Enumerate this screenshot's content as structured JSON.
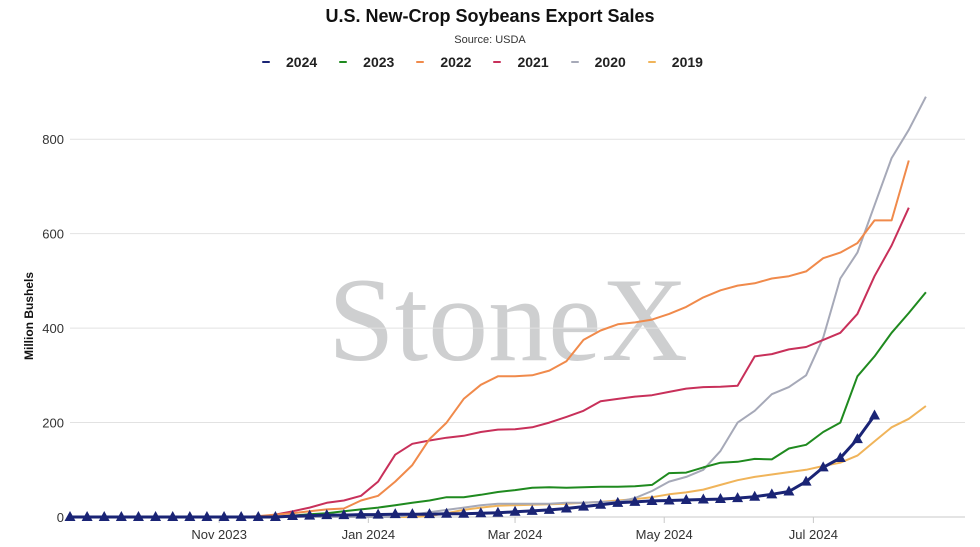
{
  "chart_data": {
    "type": "line",
    "title": "U.S. New-Crop Soybeans Export Sales",
    "subtitle": "Source: USDA",
    "ylabel": "Million Bushels",
    "xlabel": "",
    "ylim": [
      0,
      900
    ],
    "yticks": [
      0,
      200,
      400,
      600,
      800
    ],
    "xtick_labels": [
      "Nov 2023",
      "Jan 2024",
      "Mar 2024",
      "May 2024",
      "Jul 2024"
    ],
    "xtick_dates": [
      "2023-11-01",
      "2024-01-01",
      "2024-03-01",
      "2024-05-01",
      "2024-07-01"
    ],
    "xrange": [
      "2023-09-01",
      "2024-09-01"
    ],
    "x_start_date": "2023-09-01",
    "x_step_days": 7,
    "grid": "horizontal",
    "legend_position": "top",
    "watermark": "StoneX",
    "series": [
      {
        "name": "2024",
        "color": "#1a2475",
        "marker": "triangle",
        "values": [
          0,
          0,
          0,
          0,
          0,
          0,
          0,
          0,
          0,
          0,
          0,
          0,
          0,
          2,
          3,
          4,
          4,
          5,
          5,
          6,
          6,
          6,
          7,
          7,
          8,
          9,
          11,
          13,
          15,
          18,
          22,
          26,
          30,
          32,
          34,
          35,
          36,
          37,
          38,
          40,
          43,
          48,
          54,
          75,
          105,
          125,
          165,
          215
        ]
      },
      {
        "name": "2023",
        "color": "#1f8a1f",
        "values": [
          0,
          0,
          0,
          0,
          0,
          0,
          0,
          0,
          0,
          0,
          0,
          0,
          0,
          3,
          6,
          8,
          12,
          16,
          20,
          25,
          30,
          35,
          42,
          42,
          47,
          53,
          57,
          62,
          63,
          62,
          63,
          64,
          64,
          65,
          68,
          93,
          94,
          105,
          115,
          117,
          123,
          122,
          145,
          153,
          180,
          200,
          298,
          340,
          390,
          432,
          476
        ]
      },
      {
        "name": "2022",
        "color": "#f08a4b",
        "values": [
          0,
          0,
          0,
          0,
          0,
          0,
          0,
          0,
          0,
          0,
          0,
          2,
          5,
          8,
          12,
          16,
          18,
          35,
          45,
          75,
          110,
          165,
          200,
          250,
          280,
          298,
          298,
          300,
          310,
          330,
          375,
          395,
          408,
          412,
          418,
          430,
          445,
          465,
          480,
          490,
          495,
          505,
          510,
          520,
          548,
          560,
          580,
          628,
          628,
          755
        ]
      },
      {
        "name": "2021",
        "color": "#c8305a",
        "values": [
          0,
          0,
          0,
          0,
          0,
          0,
          0,
          0,
          0,
          0,
          0,
          0,
          5,
          12,
          20,
          30,
          35,
          45,
          75,
          132,
          155,
          162,
          168,
          172,
          180,
          185,
          186,
          190,
          200,
          212,
          225,
          245,
          250,
          255,
          258,
          265,
          272,
          275,
          276,
          278,
          340,
          345,
          355,
          360,
          375,
          390,
          430,
          510,
          575,
          655
        ]
      },
      {
        "name": "2020",
        "color": "#a6a9b8",
        "values": [
          0,
          0,
          0,
          0,
          0,
          0,
          0,
          0,
          0,
          0,
          0,
          0,
          0,
          0,
          0,
          0,
          0,
          0,
          0,
          0,
          5,
          10,
          15,
          20,
          25,
          28,
          28,
          28,
          28,
          30,
          30,
          32,
          32,
          40,
          55,
          75,
          85,
          100,
          140,
          200,
          225,
          260,
          275,
          300,
          380,
          505,
          560,
          660,
          760,
          820,
          890
        ]
      },
      {
        "name": "2019",
        "color": "#f0b45a",
        "values": [
          0,
          0,
          0,
          0,
          0,
          0,
          0,
          0,
          0,
          0,
          0,
          0,
          0,
          0,
          0,
          0,
          0,
          0,
          0,
          0,
          0,
          2,
          8,
          15,
          20,
          24,
          25,
          26,
          27,
          28,
          30,
          32,
          35,
          38,
          42,
          48,
          52,
          58,
          68,
          78,
          85,
          90,
          95,
          100,
          108,
          115,
          130,
          160,
          190,
          208,
          235
        ]
      }
    ]
  }
}
